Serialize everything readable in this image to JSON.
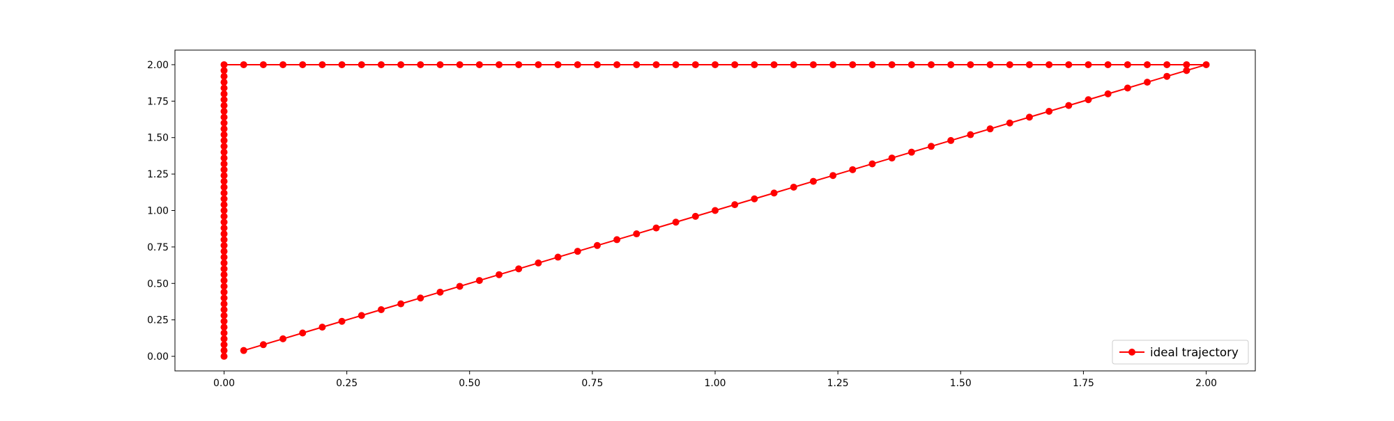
{
  "chart_data": {
    "type": "line",
    "title": "",
    "xlabel": "",
    "ylabel": "",
    "xlim": [
      -0.1,
      2.1
    ],
    "ylim": [
      -0.1,
      2.1
    ],
    "x_ticks": [
      "0.00",
      "0.25",
      "0.50",
      "0.75",
      "1.00",
      "1.25",
      "1.50",
      "1.75",
      "2.00"
    ],
    "y_ticks": [
      "0.00",
      "0.25",
      "0.50",
      "0.75",
      "1.00",
      "1.25",
      "1.50",
      "1.75",
      "2.00"
    ],
    "grid": false,
    "legend": {
      "position": "lower-right",
      "entries": [
        "ideal trajectory"
      ]
    },
    "series": [
      {
        "name": "ideal trajectory",
        "color": "#ff0000",
        "marker": "circle",
        "segments": [
          {
            "from": [
              0.0,
              0.0
            ],
            "to": [
              0.0,
              2.0
            ],
            "step": 0.04
          },
          {
            "from": [
              0.0,
              2.0
            ],
            "to": [
              2.0,
              2.0
            ],
            "step": 0.04
          },
          {
            "from": [
              2.0,
              2.0
            ],
            "to": [
              0.04,
              0.04
            ],
            "step": 0.04
          }
        ]
      }
    ]
  }
}
